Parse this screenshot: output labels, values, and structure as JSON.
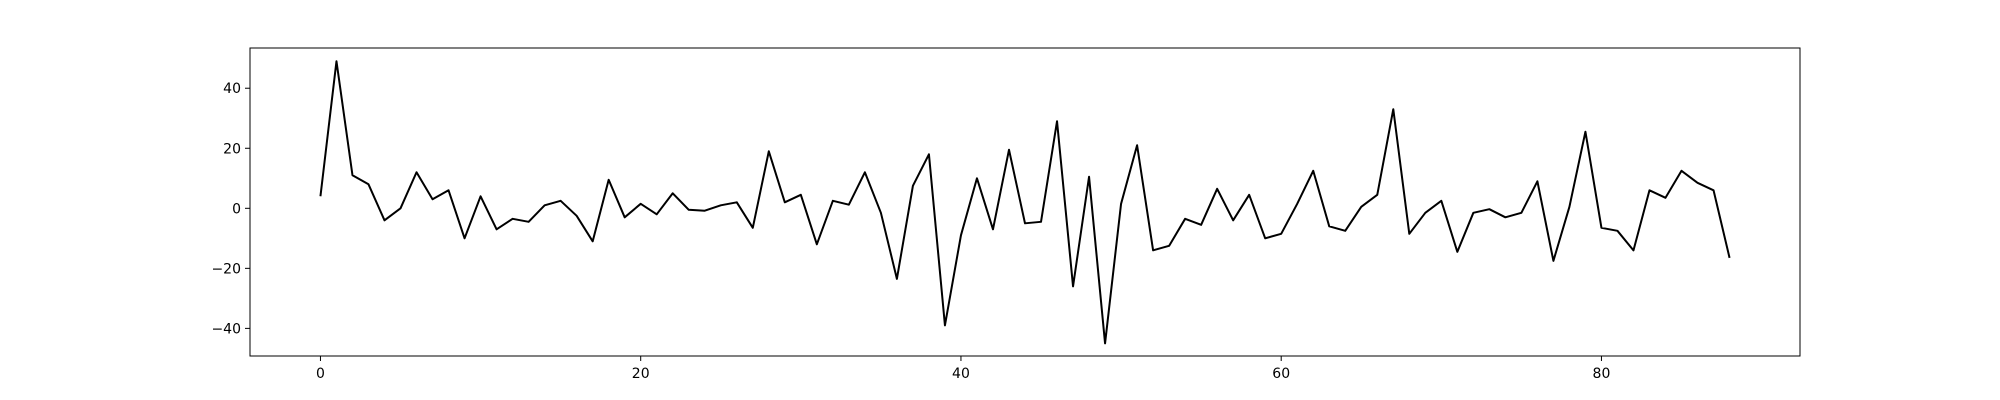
{
  "chart_data": {
    "type": "line",
    "title": "",
    "xlabel": "",
    "ylabel": "",
    "xlim": [
      -4.4,
      92.4
    ],
    "ylim": [
      -49.2,
      53.4
    ],
    "grid": false,
    "x_ticks": [
      0,
      20,
      40,
      60,
      80
    ],
    "y_ticks": [
      -40,
      -20,
      0,
      20,
      40
    ],
    "series": [
      {
        "color": "#000000",
        "x": [
          0,
          1,
          2,
          3,
          4,
          5,
          6,
          7,
          8,
          9,
          10,
          11,
          12,
          13,
          14,
          15,
          16,
          17,
          18,
          19,
          20,
          21,
          22,
          23,
          24,
          25,
          26,
          27,
          28,
          29,
          30,
          31,
          32,
          33,
          34,
          35,
          36,
          37,
          38,
          39,
          40,
          41,
          42,
          43,
          44,
          45,
          46,
          47,
          48,
          49,
          50,
          51,
          52,
          53,
          54,
          55,
          56,
          57,
          58,
          59,
          60,
          61,
          62,
          63,
          64,
          65,
          66,
          67,
          68,
          69,
          70,
          71,
          72,
          73,
          74,
          75,
          76,
          77,
          78,
          79,
          80,
          81,
          82,
          83,
          84,
          85,
          86,
          87,
          88
        ],
        "y": [
          4,
          49,
          11,
          8,
          -4,
          0,
          12,
          3,
          6,
          -10,
          4,
          -7,
          -3.5,
          -4.5,
          1,
          2.5,
          -2.5,
          -11,
          9.5,
          -3,
          1.5,
          -2,
          5,
          -0.5,
          -0.8,
          1,
          2,
          -6.5,
          19,
          2,
          4.5,
          -12,
          2.5,
          1.2,
          12,
          -1.5,
          -23.5,
          7.5,
          18,
          -39,
          -9,
          10,
          -7,
          19.5,
          -5,
          -4.5,
          29,
          -26,
          10.5,
          -45,
          1.5,
          21,
          -14,
          -12.5,
          -3.5,
          -5.5,
          6.5,
          -4,
          4.5,
          -10,
          -8.5,
          1.5,
          12.5,
          -6,
          -7.5,
          0.5,
          4.5,
          33,
          -8.5,
          -1.5,
          2.5,
          -14.5,
          -1.5,
          -0.3,
          -3,
          -1.5,
          9,
          -17.5,
          0.5,
          25.5,
          -6.5,
          -7.5,
          -14,
          6,
          3.5,
          12.5,
          8.5,
          6,
          -16.5
        ]
      }
    ]
  }
}
